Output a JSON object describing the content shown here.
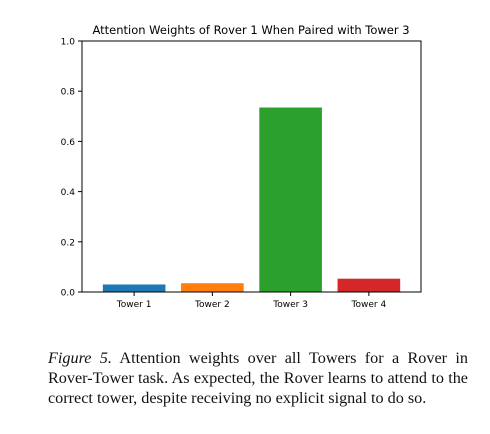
{
  "chart_data": {
    "type": "bar",
    "title": "Attention Weights of Rover 1 When Paired with Tower 3",
    "xlabel": "",
    "ylabel": "",
    "categories": [
      "Tower 1",
      "Tower 2",
      "Tower 3",
      "Tower 4"
    ],
    "values": [
      0.03,
      0.035,
      0.735,
      0.053
    ],
    "colors": [
      "#1f77b4",
      "#ff7f0e",
      "#2ca02c",
      "#d62728"
    ],
    "ylim": [
      0.0,
      1.0
    ],
    "yticks": [
      "0.0",
      "0.2",
      "0.4",
      "0.6",
      "0.8",
      "1.0"
    ],
    "grid": false,
    "legend": "none"
  },
  "caption": {
    "label": "Figure 5.",
    "text": "Attention weights over all Towers for a Rover in Rover-Tower task. As expected, the Rover learns to attend to the correct tower, despite receiving no explicit signal to do so."
  }
}
